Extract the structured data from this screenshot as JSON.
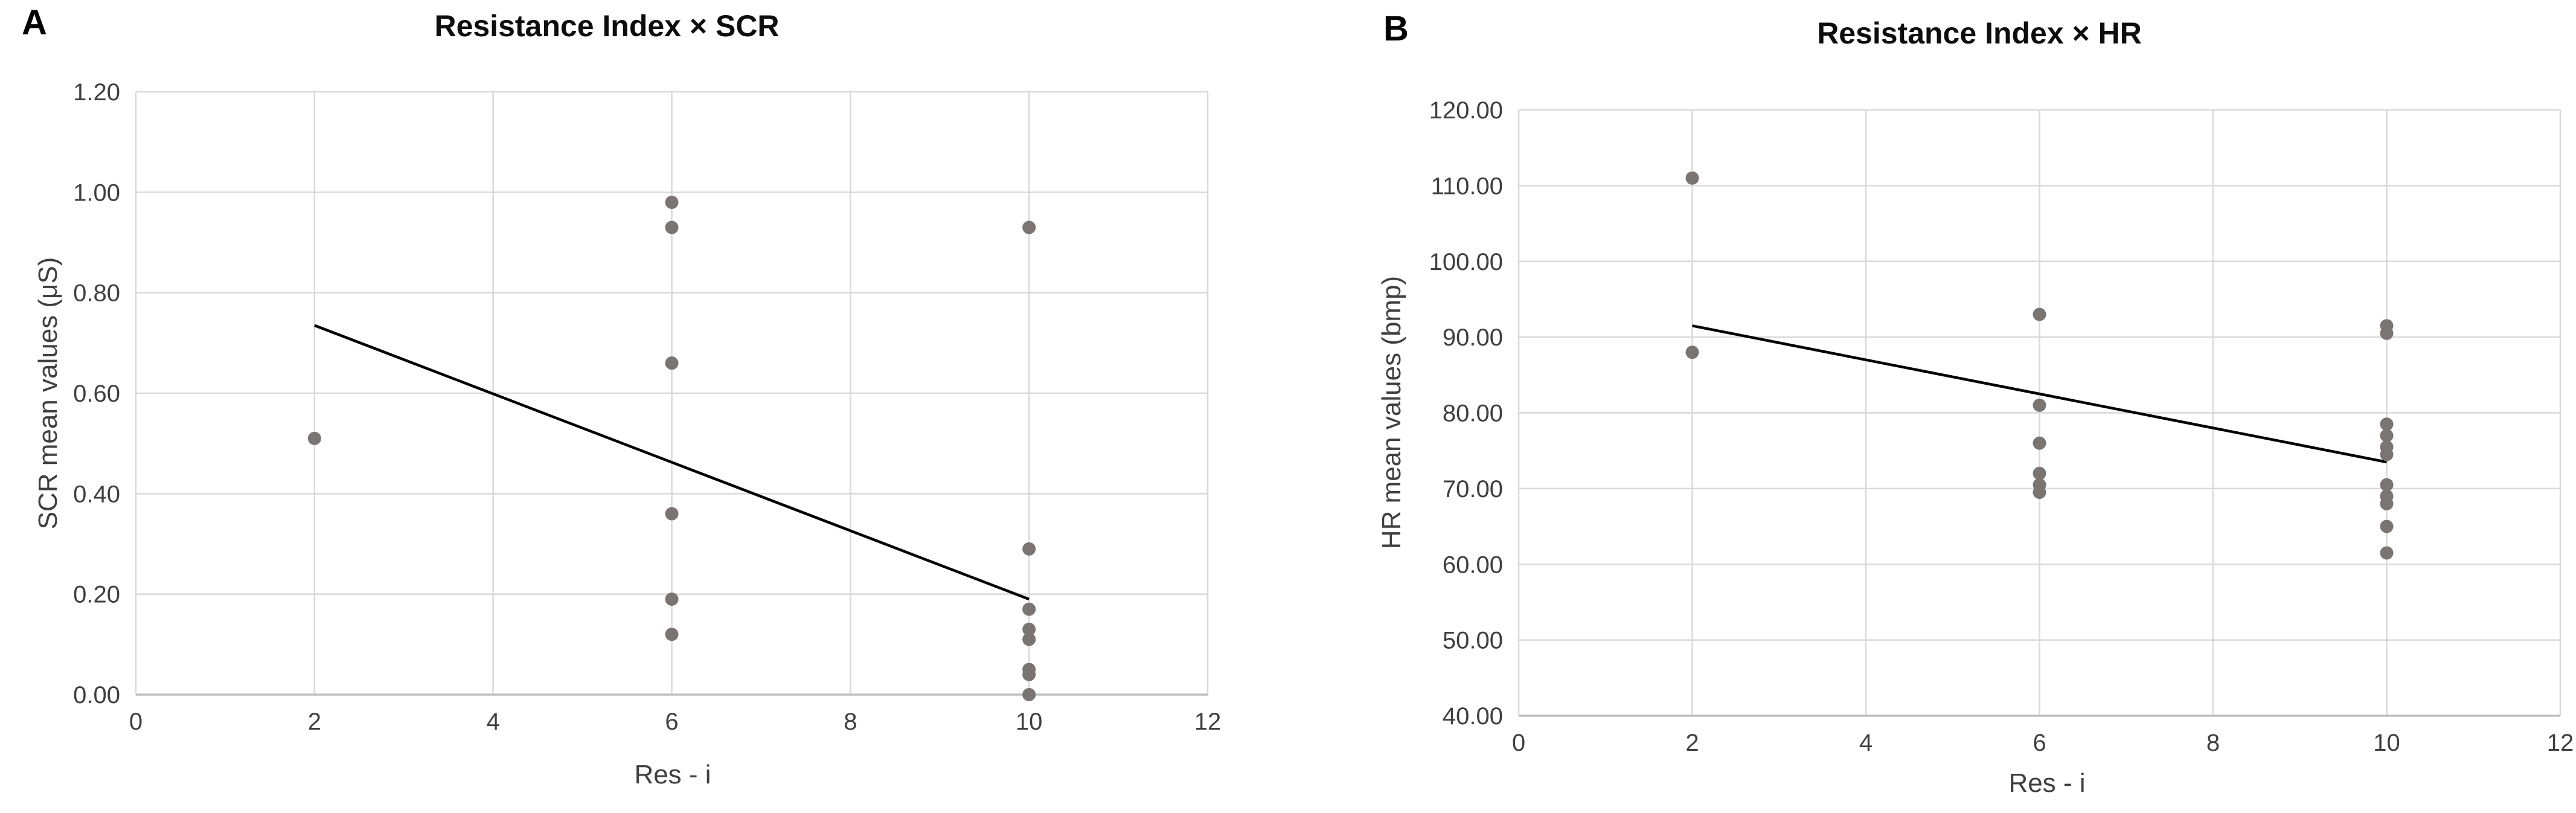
{
  "chart_data": [
    {
      "type": "scatter",
      "panel_label": "A",
      "title": "Resistance Index × SCR",
      "xlabel": "Res - i",
      "ylabel": "SCR mean values (μS)",
      "xlim": [
        0,
        12
      ],
      "ylim": [
        0,
        1.2
      ],
      "xticks": [
        0,
        2,
        4,
        6,
        8,
        10,
        12
      ],
      "yticks": [
        0,
        0.2,
        0.4,
        0.6,
        0.8,
        1,
        1.2
      ],
      "ytick_decimals": 2,
      "grid": true,
      "legend": "none",
      "points": [
        [
          2,
          0.51
        ],
        [
          6,
          0.98
        ],
        [
          6,
          0.93
        ],
        [
          6,
          0.66
        ],
        [
          6,
          0.36
        ],
        [
          6,
          0.19
        ],
        [
          6,
          0.12
        ],
        [
          10,
          0.93
        ],
        [
          10,
          0.29
        ],
        [
          10,
          0.17
        ],
        [
          10,
          0.13
        ],
        [
          10,
          0.11
        ],
        [
          10,
          0.05
        ],
        [
          10,
          0.04
        ],
        [
          10,
          0.0
        ]
      ],
      "trendline": {
        "x1": 2,
        "y1": 0.735,
        "x2": 10,
        "y2": 0.19
      },
      "colors": {
        "point": "#7a7472",
        "trend": "#000000",
        "grid": "#d9d9d9",
        "axis_line": "#bfbfbf",
        "tick_text": "#3f3f3f",
        "title_text": "#0d0d0d"
      }
    },
    {
      "type": "scatter",
      "panel_label": "B",
      "title": "Resistance Index × HR",
      "xlabel": "Res - i",
      "ylabel": "HR mean values (bmp)",
      "xlim": [
        0,
        12
      ],
      "ylim": [
        40,
        120
      ],
      "xticks": [
        0,
        2,
        4,
        6,
        8,
        10,
        12
      ],
      "yticks": [
        40,
        50,
        60,
        70,
        80,
        90,
        100,
        110,
        120
      ],
      "ytick_decimals": 2,
      "grid": true,
      "legend": "none",
      "points": [
        [
          2,
          111
        ],
        [
          2,
          88
        ],
        [
          6,
          93
        ],
        [
          6,
          81
        ],
        [
          6,
          76
        ],
        [
          6,
          72
        ],
        [
          6,
          70.5
        ],
        [
          6,
          69.5
        ],
        [
          10,
          91.5
        ],
        [
          10,
          90.5
        ],
        [
          10,
          78.5
        ],
        [
          10,
          77
        ],
        [
          10,
          75.5
        ],
        [
          10,
          74.5
        ],
        [
          10,
          70.5
        ],
        [
          10,
          69
        ],
        [
          10,
          68
        ],
        [
          10,
          65
        ],
        [
          10,
          61.5
        ]
      ],
      "trendline": {
        "x1": 2,
        "y1": 91.5,
        "x2": 10,
        "y2": 73.5
      },
      "colors": {
        "point": "#7a7472",
        "trend": "#000000",
        "grid": "#d9d9d9",
        "axis_line": "#bfbfbf",
        "tick_text": "#3f3f3f",
        "title_text": "#0d0d0d"
      }
    }
  ]
}
